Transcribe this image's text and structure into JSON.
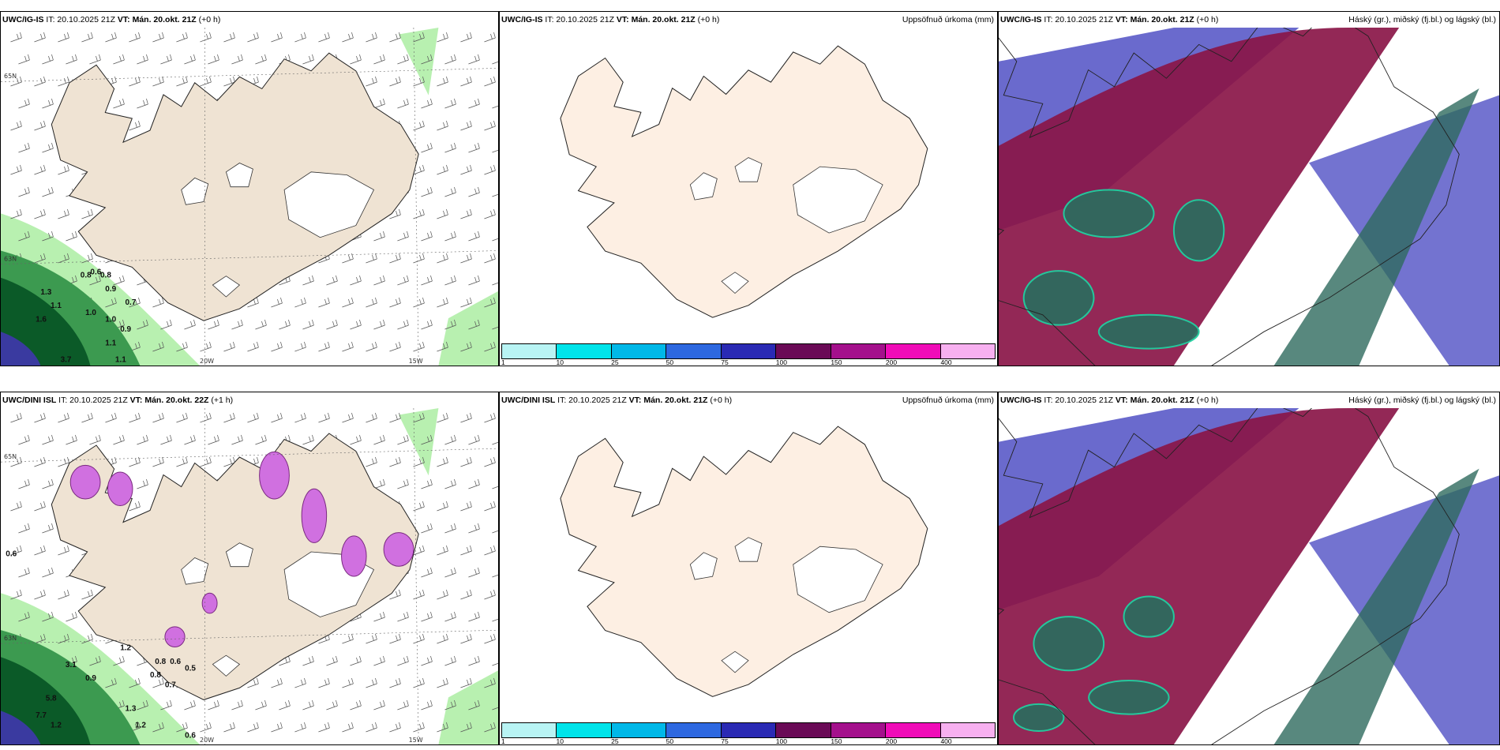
{
  "panels": [
    {
      "id": "p1",
      "model": "UWC/IG-IS",
      "it": "IT: 20.10.2025 21Z",
      "vt_label": "VT:",
      "vt": "Mán. 20.okt. 21Z",
      "lead": "(+0 h)",
      "right_title": "",
      "axis_labels": [
        "20W",
        "15W",
        "65N",
        "63N"
      ],
      "values": [
        "0.8",
        "0.6",
        "0.8",
        "0.9",
        "1.3",
        "1.1",
        "1.0",
        "0.7",
        "1.6",
        "1.0",
        "0.9",
        "1.1",
        "1.1",
        "3.7"
      ]
    },
    {
      "id": "p2",
      "model": "UWC/IG-IS",
      "it": "IT: 20.10.2025 21Z",
      "vt_label": "VT:",
      "vt": "Mán. 20.okt. 21Z",
      "lead": "(+0 h)",
      "right_title": "Uppsöfnuð úrkoma (mm)"
    },
    {
      "id": "p3",
      "model": "UWC/IG-IS",
      "it": "IT: 20.10.2025 21Z",
      "vt_label": "VT:",
      "vt": "Mán. 20.okt. 21Z",
      "lead": "(+0 h)",
      "right_title": "Háský (gr.), miðský (fj.bl.) og lágský (bl.)"
    },
    {
      "id": "p4",
      "model": "UWC/DINI ISL",
      "it": "IT: 20.10.2025 21Z",
      "vt_label": "VT:",
      "vt": "Mán. 20.okt. 22Z",
      "lead": "(+1 h)",
      "right_title": "",
      "axis_labels": [
        "20W",
        "15W",
        "65N",
        "63N"
      ],
      "values": [
        "0.6",
        "3.1",
        "0.8",
        "0.7",
        "0.5",
        "5.8",
        "7.7",
        "1.2",
        "1.2",
        "0.6",
        "1.3",
        "0.9",
        "0.6",
        "1.2",
        "0.8"
      ]
    },
    {
      "id": "p5",
      "model": "UWC/DINI ISL",
      "it": "IT: 20.10.2025 21Z",
      "vt_label": "VT:",
      "vt": "Mán. 20.okt. 21Z",
      "lead": "(+0 h)",
      "right_title": "Uppsöfnuð úrkoma (mm)"
    },
    {
      "id": "p6",
      "model": "UWC/IG-IS",
      "it": "IT: 20.10.2025 21Z",
      "vt_label": "VT:",
      "vt": "Mán. 20.okt. 21Z",
      "lead": "(+0 h)",
      "right_title": "Háský (gr.), miðský (fj.bl.) og lágský (bl.)"
    }
  ],
  "colorbar": {
    "ticks": [
      "1",
      "10",
      "25",
      "50",
      "75",
      "100",
      "150",
      "200",
      "400"
    ],
    "colors": [
      "#b8f4f4",
      "#00e4ea",
      "#00b8e8",
      "#2d68e0",
      "#2a2ab4",
      "#6a0a56",
      "#a4108c",
      "#f00cb8",
      "#f7b0f0"
    ]
  },
  "colors": {
    "land": "#efe3d3",
    "land_plain": "#fdefe3",
    "glacier": "#ffffff",
    "precip_light": "#b8f0b0",
    "precip_mid": "#3c9a50",
    "precip_dark": "#0b5a28",
    "snow": "#d070e0",
    "high_cloud": "#8a1648",
    "mid_cloud": "#2e6a5e",
    "low_cloud": "#5a5ac8"
  }
}
